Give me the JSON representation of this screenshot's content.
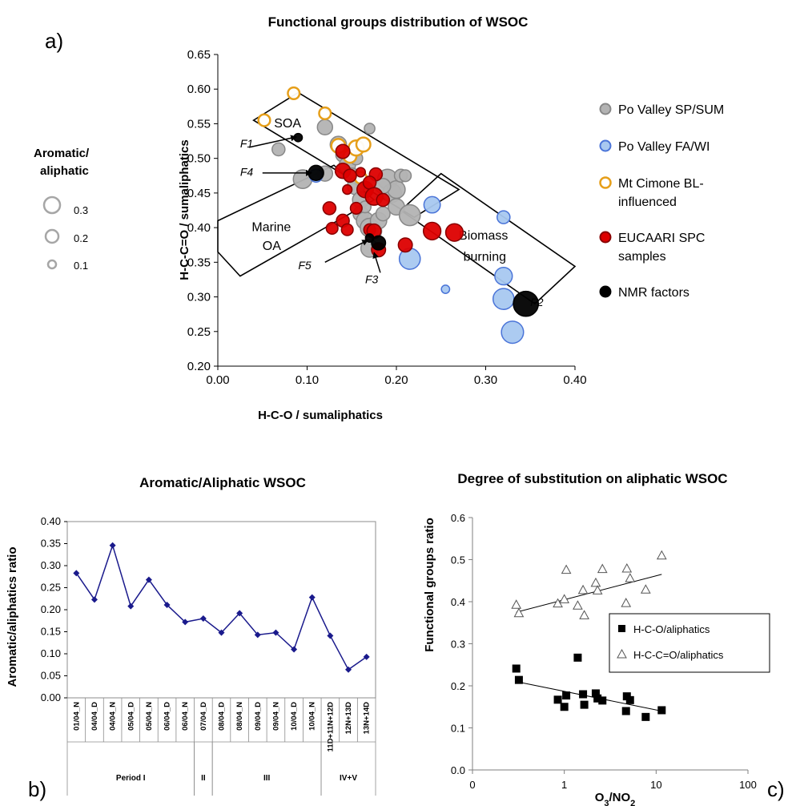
{
  "chart_data": [
    {
      "panel": "a)",
      "type": "scatter",
      "title": "Functional groups distribution of WSOC",
      "xlabel": "H-C-O / sumaliphatics",
      "ylabel": "H-C-C=O / sumaliphatics",
      "xlim": [
        0.0,
        0.4
      ],
      "ylim": [
        0.2,
        0.65
      ],
      "xticks": [
        "0.00",
        "0.10",
        "0.20",
        "0.30",
        "0.40"
      ],
      "yticks": [
        "0.20",
        "0.25",
        "0.30",
        "0.35",
        "0.40",
        "0.45",
        "0.50",
        "0.55",
        "0.60",
        "0.65"
      ],
      "size_legend": {
        "title_line1": "Aromatic/",
        "title_line2": "aliphatic",
        "items": [
          "0.3",
          "0.2",
          "0.1"
        ],
        "values": [
          0.3,
          0.2,
          0.1
        ]
      },
      "regions": [
        {
          "name": "SOA",
          "label": "SOA",
          "polygon": [
            [
              0.04,
              0.555
            ],
            [
              0.09,
              0.595
            ],
            [
              0.27,
              0.455
            ],
            [
              0.22,
              0.415
            ]
          ]
        },
        {
          "name": "Marine OA",
          "label_line1": "Marine",
          "label_line2": "OA",
          "polygon": [
            [
              0.0,
              0.41
            ],
            [
              0.0,
              0.365
            ],
            [
              0.025,
              0.33
            ],
            [
              0.175,
              0.44
            ],
            [
              0.13,
              0.49
            ]
          ]
        },
        {
          "name": "Biomass burning",
          "label_line1": "Biomass",
          "label_line2": "burning",
          "polygon": [
            [
              0.205,
              0.425
            ],
            [
              0.25,
              0.478
            ],
            [
              0.4,
              0.344
            ],
            [
              0.355,
              0.29
            ]
          ]
        }
      ],
      "series": [
        {
          "name": "Po Valley SP/SUM",
          "fill": "#b3b3b3",
          "stroke": "#888888",
          "points": [
            [
              0.068,
              0.513,
              0.14
            ],
            [
              0.095,
              0.47,
              0.24
            ],
            [
              0.12,
              0.545,
              0.18
            ],
            [
              0.12,
              0.478,
              0.18
            ],
            [
              0.135,
              0.52,
              0.2
            ],
            [
              0.14,
              0.505,
              0.16
            ],
            [
              0.145,
              0.49,
              0.2
            ],
            [
              0.15,
              0.475,
              0.18
            ],
            [
              0.155,
              0.46,
              0.22
            ],
            [
              0.16,
              0.44,
              0.2
            ],
            [
              0.16,
              0.42,
              0.18
            ],
            [
              0.165,
              0.41,
              0.22
            ],
            [
              0.17,
              0.4,
              0.24
            ],
            [
              0.175,
              0.395,
              0.18
            ],
            [
              0.17,
              0.37,
              0.22
            ],
            [
              0.18,
              0.41,
              0.2
            ],
            [
              0.185,
              0.42,
              0.16
            ],
            [
              0.19,
              0.47,
              0.26
            ],
            [
              0.195,
              0.45,
              0.24
            ],
            [
              0.2,
              0.43,
              0.2
            ],
            [
              0.2,
              0.455,
              0.22
            ],
            [
              0.205,
              0.475,
              0.14
            ],
            [
              0.21,
              0.475,
              0.12
            ],
            [
              0.17,
              0.543,
              0.1
            ],
            [
              0.215,
              0.418,
              0.28
            ],
            [
              0.185,
              0.46,
              0.18
            ],
            [
              0.155,
              0.5,
              0.14
            ],
            [
              0.165,
              0.43,
              0.12
            ]
          ]
        },
        {
          "name": "Po Valley FA/WI",
          "fill": "#a8c8f0",
          "stroke": "#4a74d8",
          "points": [
            [
              0.215,
              0.355,
              0.28
            ],
            [
              0.24,
              0.433,
              0.2
            ],
            [
              0.255,
              0.311,
              0.06
            ],
            [
              0.32,
              0.415,
              0.14
            ],
            [
              0.32,
              0.33,
              0.22
            ],
            [
              0.32,
              0.297,
              0.28
            ],
            [
              0.33,
              0.249,
              0.3
            ],
            [
              0.11,
              0.475,
              0.14
            ]
          ]
        },
        {
          "name": "Mt Cimone BL-influenced",
          "fill": "#ffffff",
          "stroke": "#e69f1a",
          "points": [
            [
              0.052,
              0.555,
              0.12
            ],
            [
              0.085,
              0.594,
              0.12
            ],
            [
              0.12,
              0.565,
              0.12
            ],
            [
              0.135,
              0.518,
              0.16
            ],
            [
              0.148,
              0.503,
              0.14
            ],
            [
              0.155,
              0.515,
              0.18
            ],
            [
              0.163,
              0.52,
              0.16
            ],
            [
              0.16,
              0.472,
              0.12
            ]
          ]
        },
        {
          "name": "EUCAARI SPC samples",
          "fill": "#dd0000",
          "stroke": "#880000",
          "points": [
            [
              0.14,
              0.51,
              0.16
            ],
            [
              0.14,
              0.482,
              0.18
            ],
            [
              0.148,
              0.475,
              0.14
            ],
            [
              0.145,
              0.455,
              0.08
            ],
            [
              0.16,
              0.48,
              0.08
            ],
            [
              0.177,
              0.477,
              0.14
            ],
            [
              0.165,
              0.455,
              0.2
            ],
            [
              0.17,
              0.465,
              0.14
            ],
            [
              0.175,
              0.445,
              0.22
            ],
            [
              0.185,
              0.44,
              0.14
            ],
            [
              0.155,
              0.428,
              0.12
            ],
            [
              0.125,
              0.428,
              0.14
            ],
            [
              0.14,
              0.41,
              0.14
            ],
            [
              0.128,
              0.399,
              0.12
            ],
            [
              0.145,
              0.397,
              0.12
            ],
            [
              0.17,
              0.397,
              0.12
            ],
            [
              0.175,
              0.395,
              0.16
            ],
            [
              0.18,
              0.368,
              0.16
            ],
            [
              0.21,
              0.375,
              0.16
            ],
            [
              0.24,
              0.395,
              0.22
            ],
            [
              0.265,
              0.393,
              0.22
            ]
          ]
        },
        {
          "name": "NMR factors",
          "fill": "#000000",
          "stroke": "#000000",
          "points": [
            [
              0.09,
              0.53,
              0.06
            ],
            [
              0.11,
              0.479,
              0.18
            ],
            [
              0.345,
              0.29,
              0.35
            ],
            [
              0.18,
              0.378,
              0.16
            ],
            [
              0.17,
              0.385,
              0.06
            ]
          ]
        }
      ],
      "legend_entries": [
        {
          "name": "Po Valley SP/SUM",
          "lines": [
            "Po Valley SP/SUM"
          ]
        },
        {
          "name": "Po Valley FA/WI",
          "lines": [
            "Po Valley FA/WI"
          ]
        },
        {
          "name": "Mt Cimone BL-influenced",
          "lines": [
            "Mt Cimone BL-",
            "influenced"
          ]
        },
        {
          "name": "EUCAARI SPC samples",
          "lines": [
            "EUCAARI SPC",
            "samples"
          ]
        },
        {
          "name": "NMR factors",
          "lines": [
            "NMR factors"
          ]
        }
      ],
      "factor_annotations": [
        {
          "label": "F1",
          "text_at": [
            0.025,
            0.516
          ],
          "arrow_from": [
            0.035,
            0.516
          ],
          "arrow_to": [
            0.088,
            0.531
          ]
        },
        {
          "label": "F4",
          "text_at": [
            0.025,
            0.475
          ],
          "arrow_from": [
            0.05,
            0.479
          ],
          "arrow_to": [
            0.105,
            0.479
          ]
        },
        {
          "label": "F5",
          "text_at": [
            0.09,
            0.34
          ],
          "arrow_from": [
            0.12,
            0.35
          ],
          "arrow_to": [
            0.168,
            0.382
          ]
        },
        {
          "label": "F3",
          "text_at": [
            0.165,
            0.32
          ],
          "arrow_from": [
            0.182,
            0.335
          ],
          "arrow_to": [
            0.175,
            0.364
          ]
        },
        {
          "label": "F2",
          "text_at": [
            0.35,
            0.287
          ]
        }
      ]
    },
    {
      "panel": "b)",
      "type": "line",
      "title": "Aromatic/Aliphatic WSOC",
      "ylabel": "Aromatic/aliphatics ratio",
      "ylim": [
        0.0,
        0.4
      ],
      "yticks": [
        "0.00",
        "0.05",
        "0.10",
        "0.15",
        "0.20",
        "0.25",
        "0.30",
        "0.35",
        "0.40"
      ],
      "categories": [
        "01/04_N",
        "04/04_D",
        "04/04_N",
        "05/04_D",
        "05/04_N",
        "06/04_D",
        "06/04_N",
        "07/04_D",
        "08/04_D",
        "08/04_N",
        "09/04_D",
        "09/04_N",
        "10/04_D",
        "10/04_N",
        "11D+11N+12D",
        "12N+13D",
        "13N+14D"
      ],
      "values": [
        0.283,
        0.223,
        0.346,
        0.208,
        0.268,
        0.211,
        0.172,
        0.18,
        0.148,
        0.192,
        0.143,
        0.148,
        0.11,
        0.228,
        0.141,
        0.064,
        0.093
      ],
      "color": "#1a1a8c",
      "periods": [
        {
          "label": "Period   I",
          "start": 0,
          "end": 6
        },
        {
          "label": "II",
          "start": 7,
          "end": 7
        },
        {
          "label": "III",
          "start": 8,
          "end": 13
        },
        {
          "label": "IV+V",
          "start": 14,
          "end": 16
        }
      ]
    },
    {
      "panel": "c)",
      "type": "scatter",
      "title": "Degree of substitution on aliphatic WSOC",
      "xlabel_main": "O",
      "xlabel_sub1": "3",
      "xlabel_mid": "/NO",
      "xlabel_sub2": "2",
      "ylabel": "Functional groups ratio",
      "xscale": "log",
      "xlim": [
        0.1,
        100
      ],
      "ylim": [
        0.0,
        0.6
      ],
      "xticks": [
        "0",
        "1",
        "10",
        "100"
      ],
      "yticks": [
        "0.0",
        "0.1",
        "0.2",
        "0.3",
        "0.4",
        "0.5",
        "0.6"
      ],
      "series": [
        {
          "name": "H-C-O/aliphatics",
          "marker": "square",
          "x": [
            0.3,
            0.32,
            0.85,
            1.0,
            1.05,
            1.4,
            1.6,
            1.65,
            2.2,
            2.3,
            2.6,
            4.7,
            4.8,
            5.2,
            7.7,
            11.5
          ],
          "y": [
            0.241,
            0.214,
            0.167,
            0.15,
            0.177,
            0.267,
            0.18,
            0.155,
            0.182,
            0.17,
            0.165,
            0.14,
            0.175,
            0.166,
            0.126,
            0.142
          ],
          "trend": [
            [
              0.3,
              0.21
            ],
            [
              11.5,
              0.14
            ]
          ]
        },
        {
          "name": "H-C-C=O/aliphatics",
          "marker": "triangle",
          "x": [
            0.3,
            0.32,
            0.85,
            1.0,
            1.05,
            1.4,
            1.6,
            1.65,
            2.2,
            2.3,
            2.6,
            4.7,
            4.8,
            5.2,
            7.7,
            11.5
          ],
          "y": [
            0.392,
            0.372,
            0.395,
            0.405,
            0.475,
            0.39,
            0.427,
            0.367,
            0.444,
            0.426,
            0.477,
            0.396,
            0.478,
            0.455,
            0.428,
            0.509
          ],
          "trend": [
            [
              0.3,
              0.375
            ],
            [
              11.5,
              0.465
            ]
          ]
        }
      ],
      "legend": [
        {
          "label": "H-C-O/aliphatics",
          "marker": "square"
        },
        {
          "label": "H-C-C=O/aliphatics",
          "marker": "triangle"
        }
      ]
    }
  ]
}
